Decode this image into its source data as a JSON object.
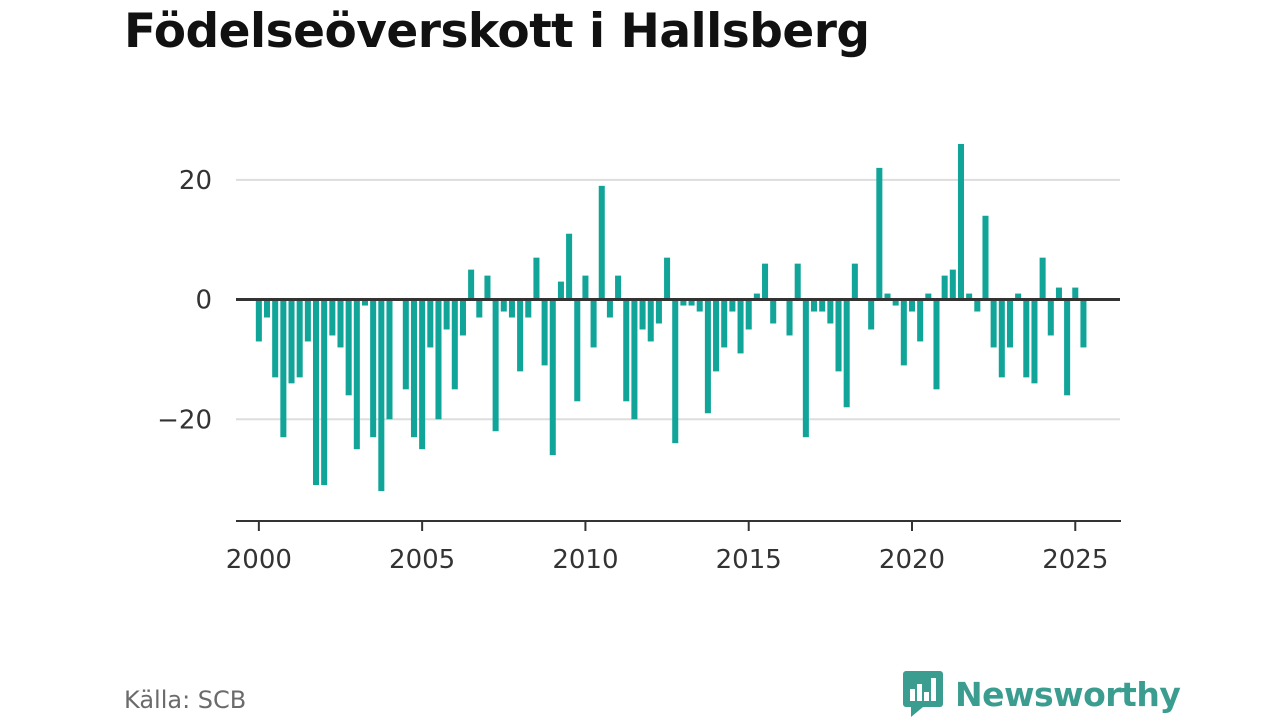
{
  "title": "Födelseöverskott i Hallsberg",
  "source": "Källa: SCB",
  "brand": {
    "name": "Newsworthy",
    "color": "#3a9d8f",
    "icon": "bar-chart-speech-bubble-icon"
  },
  "colors": {
    "bar": "#11a59a",
    "zero_line": "#333333",
    "grid": "#dddddd",
    "axis": "#333333"
  },
  "chart_data": {
    "type": "bar",
    "frequency": "quarterly",
    "xlim": [
      1999.3,
      2026.4
    ],
    "ylim": [
      -37,
      30
    ],
    "y_ticks": [
      20,
      0,
      -20
    ],
    "y_tick_labels": [
      "20",
      "0",
      "−20"
    ],
    "x_ticks": [
      2000,
      2005,
      2010,
      2015,
      2020,
      2025
    ],
    "x_tick_labels": [
      "2000",
      "2005",
      "2010",
      "2015",
      "2020",
      "2025"
    ],
    "grid": "horizontal",
    "title": "Födelseöverskott i Hallsberg",
    "xlabel": "",
    "ylabel": "",
    "start": "2000 Q1",
    "categories": [
      "2000 Q1",
      "2000 Q2",
      "2000 Q3",
      "2000 Q4",
      "2001 Q1",
      "2001 Q2",
      "2001 Q3",
      "2001 Q4",
      "2002 Q1",
      "2002 Q2",
      "2002 Q3",
      "2002 Q4",
      "2003 Q1",
      "2003 Q2",
      "2003 Q3",
      "2003 Q4",
      "2004 Q1",
      "2004 Q2",
      "2004 Q3",
      "2004 Q4",
      "2005 Q1",
      "2005 Q2",
      "2005 Q3",
      "2005 Q4",
      "2006 Q1",
      "2006 Q2",
      "2006 Q3",
      "2006 Q4",
      "2007 Q1",
      "2007 Q2",
      "2007 Q3",
      "2007 Q4",
      "2008 Q1",
      "2008 Q2",
      "2008 Q3",
      "2008 Q4",
      "2009 Q1",
      "2009 Q2",
      "2009 Q3",
      "2009 Q4",
      "2010 Q1",
      "2010 Q2",
      "2010 Q3",
      "2010 Q4",
      "2011 Q1",
      "2011 Q2",
      "2011 Q3",
      "2011 Q4",
      "2012 Q1",
      "2012 Q2",
      "2012 Q3",
      "2012 Q4",
      "2013 Q1",
      "2013 Q2",
      "2013 Q3",
      "2013 Q4",
      "2014 Q1",
      "2014 Q2",
      "2014 Q3",
      "2014 Q4",
      "2015 Q1",
      "2015 Q2",
      "2015 Q3",
      "2015 Q4",
      "2016 Q1",
      "2016 Q2",
      "2016 Q3",
      "2016 Q4",
      "2017 Q1",
      "2017 Q2",
      "2017 Q3",
      "2017 Q4",
      "2018 Q1",
      "2018 Q2",
      "2018 Q3",
      "2018 Q4",
      "2019 Q1",
      "2019 Q2",
      "2019 Q3",
      "2019 Q4",
      "2020 Q1",
      "2020 Q2",
      "2020 Q3",
      "2020 Q4",
      "2021 Q1",
      "2021 Q2",
      "2021 Q3",
      "2021 Q4",
      "2022 Q1",
      "2022 Q2",
      "2022 Q3",
      "2022 Q4",
      "2023 Q1",
      "2023 Q2",
      "2023 Q3",
      "2023 Q4",
      "2024 Q1",
      "2024 Q2",
      "2024 Q3",
      "2024 Q4",
      "2025 Q1",
      "2025 Q2"
    ],
    "values": [
      -7,
      -3,
      -13,
      -23,
      -14,
      -13,
      -7,
      -31,
      -31,
      -6,
      -8,
      -16,
      -25,
      -1,
      -23,
      -32,
      -20,
      0,
      -15,
      -23,
      -25,
      -8,
      -20,
      -5,
      -15,
      -6,
      5,
      -3,
      4,
      -22,
      -2,
      -3,
      -12,
      -3,
      7,
      -11,
      -26,
      3,
      11,
      -17,
      4,
      -8,
      19,
      -3,
      4,
      -17,
      -20,
      -5,
      -7,
      -4,
      7,
      -24,
      -1,
      -1,
      -2,
      -19,
      -12,
      -8,
      -2,
      -9,
      -5,
      1,
      6,
      -4,
      0,
      -6,
      6,
      -23,
      -2,
      -2,
      -4,
      -12,
      -18,
      6,
      0,
      -5,
      22,
      1,
      -1,
      -11,
      -2,
      -7,
      1,
      -15,
      4,
      5,
      26,
      1,
      -2,
      14,
      -8,
      -13,
      -8,
      1,
      -13,
      -14,
      7,
      -6,
      2,
      -16,
      2,
      -8
    ]
  }
}
